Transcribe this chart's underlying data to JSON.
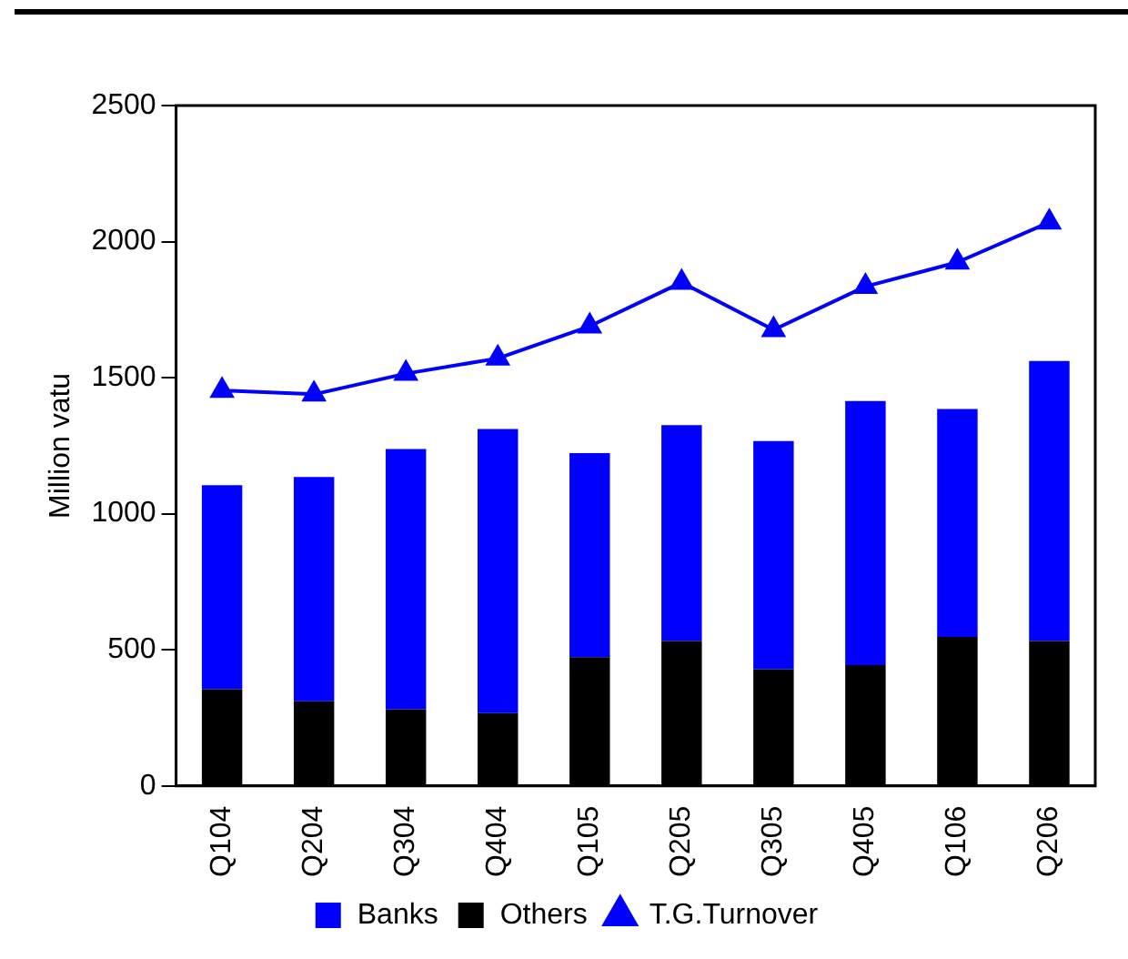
{
  "chart_data": {
    "type": "bar",
    "ylabel": "Million vatu",
    "categories": [
      "Q104",
      "Q204",
      "Q304",
      "Q404",
      "Q105",
      "Q205",
      "Q305",
      "Q405",
      "Q106",
      "Q206"
    ],
    "series": [
      {
        "name": "Others",
        "color": "#000000",
        "values": [
          355,
          311,
          282,
          267,
          473,
          532,
          429,
          444,
          547,
          532
        ]
      },
      {
        "name": "Banks",
        "color": "#0000ff",
        "values": [
          750,
          824,
          956,
          1044,
          750,
          794,
          838,
          970,
          838,
          1029
        ]
      },
      {
        "name": "T.G.Turnover",
        "type": "line",
        "color": "#0000ff",
        "values": [
          1453,
          1439,
          1515,
          1571,
          1689,
          1850,
          1676,
          1835,
          1924,
          2071
        ]
      }
    ],
    "stacked": true,
    "ylim": [
      0,
      2500
    ],
    "yticks": [
      0,
      500,
      1000,
      1500,
      2000,
      2500
    ],
    "grid": false,
    "legend": "bottom",
    "marker": "triangle",
    "line_style": "solid"
  }
}
